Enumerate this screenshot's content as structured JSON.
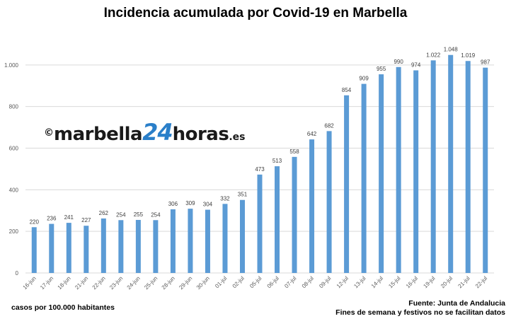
{
  "title": "Incidencia acumulada por Covid-19 en Marbella",
  "watermark": {
    "copyright": "©",
    "brand": "marbella",
    "number": "24",
    "word": "horas",
    "tld": ".es"
  },
  "notes": {
    "unit": "casos por 100.000 habitantes",
    "source": "Fuente: Junta de Andalucia",
    "disclaimer": "Fines de semana y festivos no se facilitan datos"
  },
  "colors": {
    "bar": "#5b9bd5",
    "grid": "#d9d9d9"
  },
  "chart_data": {
    "type": "bar",
    "title": "Incidencia acumulada por Covid-19 en Marbella",
    "categories": [
      "16-jun",
      "17-jun",
      "18-jun",
      "21-jun",
      "22-jun",
      "23-jun",
      "24-jun",
      "25-jun",
      "28-jun",
      "29-jun",
      "30-jun",
      "01-jul",
      "02-jul",
      "05-jul",
      "06-jul",
      "07-jul",
      "08-jul",
      "09-jul",
      "12-jul",
      "13-jul",
      "14-jul",
      "15-jul",
      "16-jul",
      "19-jul",
      "20-jul",
      "21-jul",
      "22-jul"
    ],
    "values": [
      220,
      236,
      241,
      227,
      262,
      254,
      255,
      254,
      306,
      309,
      304,
      332,
      351,
      473,
      513,
      558,
      642,
      682,
      854,
      909,
      955,
      990,
      974,
      1022,
      1048,
      1019,
      987
    ],
    "value_labels": [
      "220",
      "236",
      "241",
      "227",
      "262",
      "254",
      "255",
      "254",
      "306",
      "309",
      "304",
      "332",
      "351",
      "473",
      "513",
      "558",
      "642",
      "682",
      "854",
      "909",
      "955",
      "990",
      "974",
      "1.022",
      "1.048",
      "1.019",
      "987"
    ],
    "ylim": [
      0,
      1200
    ],
    "yticks": [
      0,
      200,
      400,
      600,
      800,
      1000
    ],
    "ytick_labels": [
      "0",
      "200",
      "400",
      "600",
      "800",
      "1.000"
    ],
    "grid": true
  }
}
